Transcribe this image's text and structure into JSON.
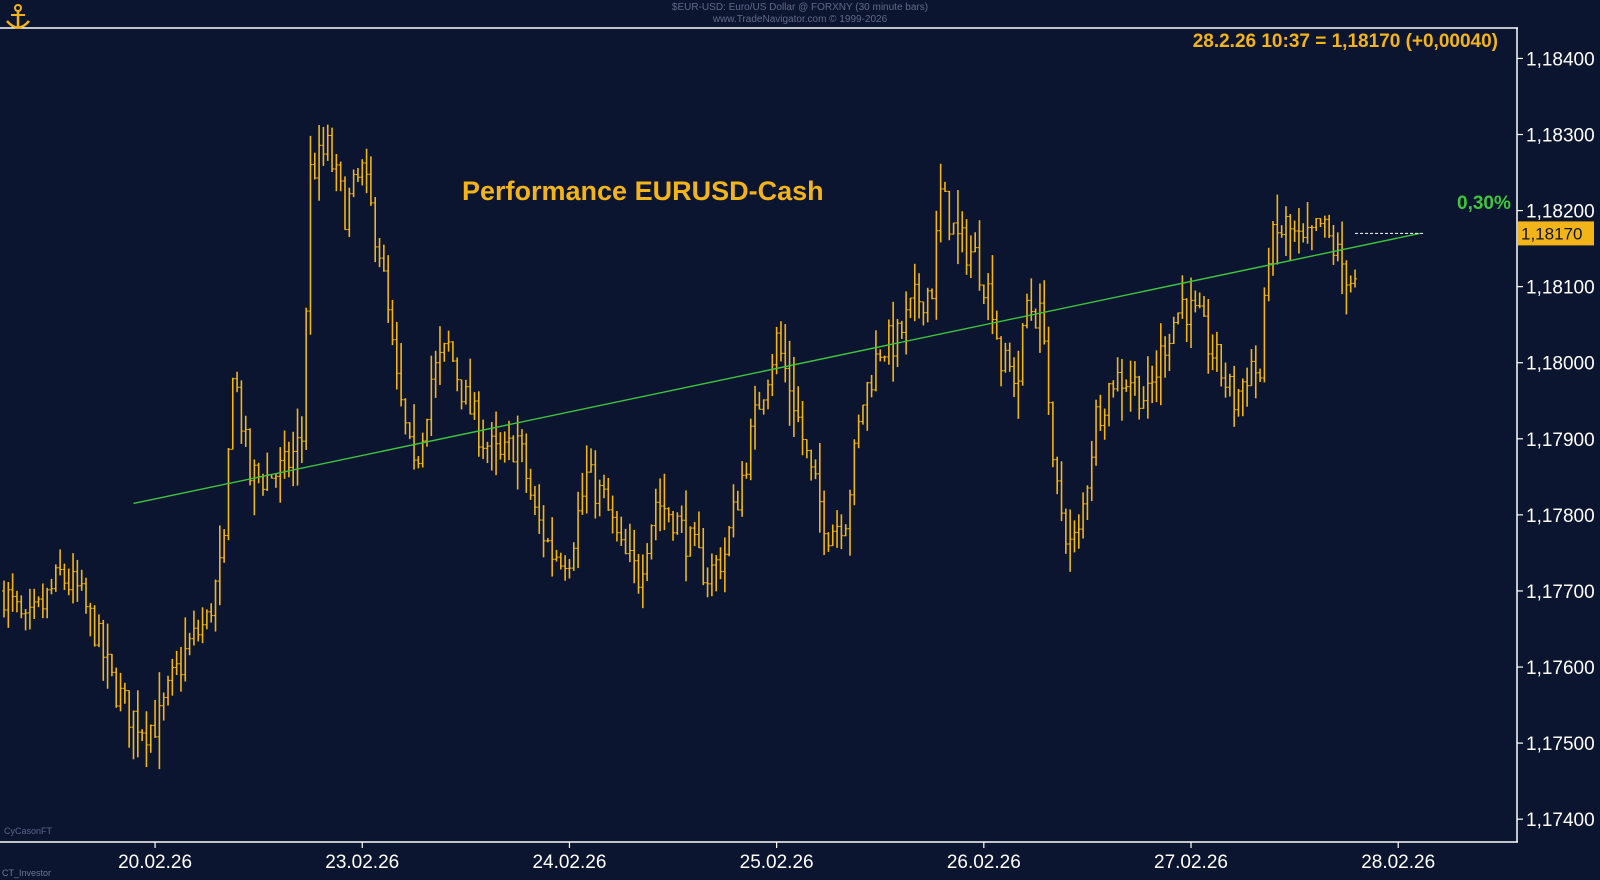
{
  "header": {
    "line1": "$EUR-USD: Euro/US Dollar @ FORXNY (30 minute bars)",
    "line2": "www.TradeNavigator.com © 1999-2026"
  },
  "footer": {
    "left": "CT_Investor",
    "corner": "CyCasonFT"
  },
  "colors": {
    "background": "#0c1530",
    "bars": "#f2b418",
    "trend": "#3ec43e",
    "text": "#ffffff",
    "accent": "#f2b418",
    "axis": "#ffffff"
  },
  "icons": {
    "logo": "anchor-icon"
  },
  "chart_data": {
    "type": "bar",
    "style": "ohlc",
    "title": "Performance EURUSD-Cash",
    "quote": "28.2.26 10:37 = 1,18170 (+0,00040)",
    "last_value": 1.1817,
    "last_value_label": "1,18170",
    "ylim": [
      1.1737,
      1.1844
    ],
    "y_ticks": [
      1.174,
      1.175,
      1.176,
      1.177,
      1.178,
      1.179,
      1.18,
      1.181,
      1.182,
      1.183,
      1.184
    ],
    "y_tick_labels": [
      "1,17400",
      "1,17500",
      "1,17600",
      "1,17700",
      "1,17800",
      "1,17900",
      "1,18000",
      "1,18100",
      "1,18200",
      "1,18300",
      "1,18400"
    ],
    "x_labels": [
      "20.02.26",
      "23.02.26",
      "24.02.26",
      "25.02.26",
      "26.02.26",
      "27.02.26",
      "28.02.26"
    ],
    "x_label_positions": [
      0,
      48,
      96,
      144,
      192,
      240,
      288
    ],
    "x_range": [
      -35,
      300
    ],
    "trend": {
      "start": [
        -5,
        1.17815
      ],
      "end": [
        293,
        1.1817
      ],
      "label": "0,30%"
    },
    "anchors": [
      [
        -35,
        1.177
      ],
      [
        -30,
        1.1765
      ],
      [
        -26,
        1.1768
      ],
      [
        -22,
        1.1772
      ],
      [
        -18,
        1.177
      ],
      [
        -14,
        1.1765
      ],
      [
        -10,
        1.1758
      ],
      [
        -6,
        1.1754
      ],
      [
        -2,
        1.1752
      ],
      [
        1,
        1.1753
      ],
      [
        4,
        1.1758
      ],
      [
        8,
        1.1763
      ],
      [
        12,
        1.1766
      ],
      [
        16,
        1.1775
      ],
      [
        18,
        1.18
      ],
      [
        22,
        1.1785
      ],
      [
        26,
        1.1785
      ],
      [
        30,
        1.1786
      ],
      [
        34,
        1.179
      ],
      [
        36,
        1.1825
      ],
      [
        40,
        1.1828
      ],
      [
        44,
        1.182
      ],
      [
        48,
        1.1825
      ],
      [
        52,
        1.1815
      ],
      [
        56,
        1.1797
      ],
      [
        60,
        1.1785
      ],
      [
        64,
        1.1798
      ],
      [
        68,
        1.1802
      ],
      [
        72,
        1.1795
      ],
      [
        76,
        1.179
      ],
      [
        80,
        1.1787
      ],
      [
        84,
        1.179
      ],
      [
        88,
        1.178
      ],
      [
        92,
        1.1775
      ],
      [
        96,
        1.1775
      ],
      [
        100,
        1.1785
      ],
      [
        104,
        1.1782
      ],
      [
        108,
        1.1775
      ],
      [
        112,
        1.1772
      ],
      [
        116,
        1.1782
      ],
      [
        120,
        1.178
      ],
      [
        124,
        1.1776
      ],
      [
        128,
        1.1772
      ],
      [
        132,
        1.1775
      ],
      [
        136,
        1.1785
      ],
      [
        140,
        1.1795
      ],
      [
        144,
        1.1803
      ],
      [
        148,
        1.1795
      ],
      [
        152,
        1.1785
      ],
      [
        156,
        1.1778
      ],
      [
        160,
        1.178
      ],
      [
        164,
        1.1795
      ],
      [
        168,
        1.1802
      ],
      [
        172,
        1.1803
      ],
      [
        176,
        1.1808
      ],
      [
        180,
        1.181
      ],
      [
        182,
        1.1822
      ],
      [
        186,
        1.1816
      ],
      [
        190,
        1.1814
      ],
      [
        194,
        1.1808
      ],
      [
        196,
        1.18
      ],
      [
        200,
        1.1798
      ],
      [
        202,
        1.1808
      ],
      [
        206,
        1.1805
      ],
      [
        208,
        1.1785
      ],
      [
        212,
        1.1776
      ],
      [
        214,
        1.1777
      ],
      [
        218,
        1.1793
      ],
      [
        222,
        1.1798
      ],
      [
        226,
        1.1798
      ],
      [
        230,
        1.1795
      ],
      [
        234,
        1.1803
      ],
      [
        238,
        1.1808
      ],
      [
        242,
        1.1805
      ],
      [
        246,
        1.18
      ],
      [
        250,
        1.1795
      ],
      [
        254,
        1.18
      ],
      [
        256,
        1.1798
      ],
      [
        258,
        1.1815
      ],
      [
        262,
        1.1818
      ],
      [
        266,
        1.1815
      ],
      [
        270,
        1.1818
      ],
      [
        273,
        1.1815
      ],
      [
        276,
        1.1812
      ],
      [
        278,
        1.181
      ]
    ],
    "bar_spread": [
      0.0001,
      0.0005
    ],
    "seed": 7
  }
}
